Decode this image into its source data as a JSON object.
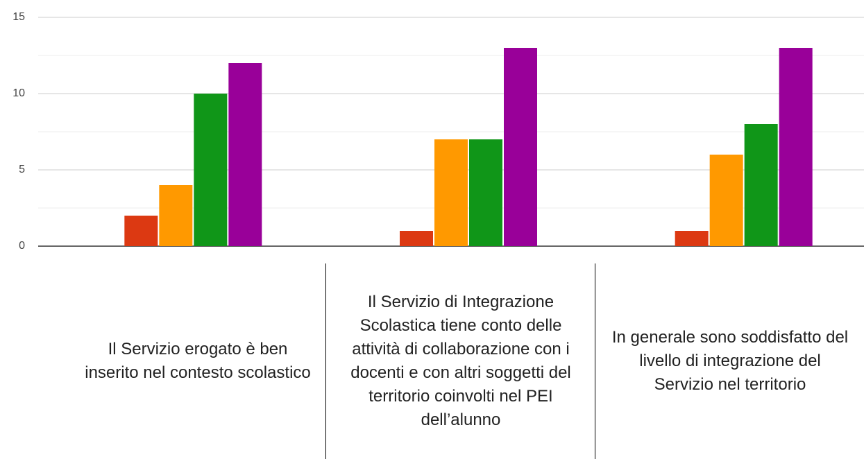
{
  "chart_data": {
    "type": "bar",
    "categories": [
      "Il Servizio erogato è ben inserito nel contesto scolastico",
      "Il Servizio di Integrazione Scolastica tiene conto delle attività di collaborazione con i docenti e con altri soggetti del territorio coinvolti nel PEI dell’alunno",
      "In generale sono soddisfatto del livello di integrazione del Servizio nel territorio"
    ],
    "series": [
      {
        "color": "#3366cc",
        "values": [
          0,
          0,
          0
        ]
      },
      {
        "color": "#dc3912",
        "values": [
          2,
          1,
          1
        ]
      },
      {
        "color": "#ff9900",
        "values": [
          4,
          7,
          6
        ]
      },
      {
        "color": "#109618",
        "values": [
          10,
          7,
          8
        ]
      },
      {
        "color": "#990099",
        "values": [
          12,
          13,
          13
        ]
      }
    ],
    "ylim": [
      0,
      15
    ],
    "yticks": [
      0,
      5,
      10,
      15
    ],
    "minor_yticks": [
      2.5,
      7.5,
      12.5
    ],
    "grid": true
  }
}
